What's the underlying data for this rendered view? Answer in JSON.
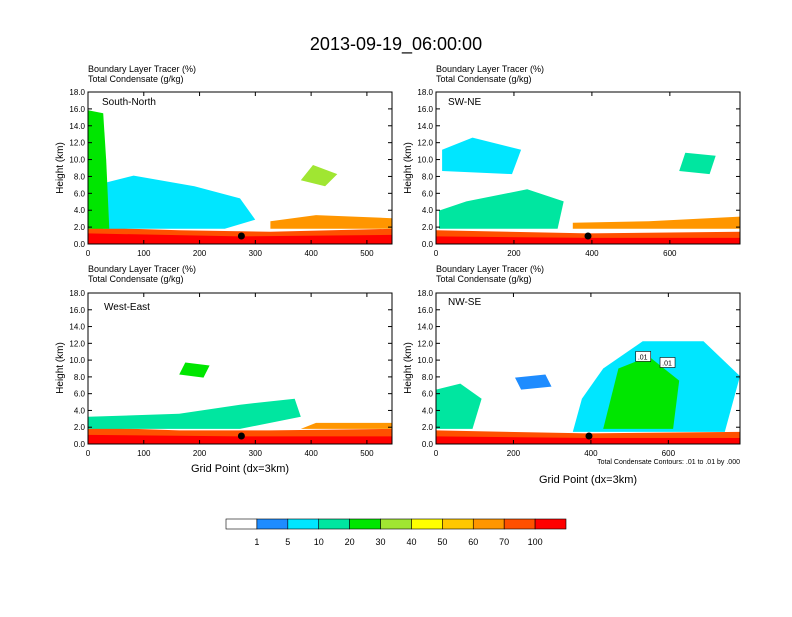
{
  "title": "2013-09-19_06:00:00",
  "x_axis_label": "Grid Point (dx=3km)",
  "contour_note": "Total Condensate Contours: .01 to .01 by .000",
  "colorbar": {
    "levels": [
      "1",
      "5",
      "10",
      "20",
      "30",
      "40",
      "50",
      "60",
      "70",
      "100"
    ],
    "colors": [
      "#ffffff",
      "#1e8cff",
      "#00e6ff",
      "#00e6a0",
      "#00e600",
      "#a0e632",
      "#ffff00",
      "#ffc800",
      "#ff9600",
      "#ff5000",
      "#ff0000"
    ]
  },
  "chart_data": [
    {
      "type": "heatmap",
      "panel_label": "South-North",
      "subtitle_1": "Boundary Layer Tracer   (%)",
      "subtitle_2": "Total Condensate   (g/kg)",
      "ylabel": "Height (km)",
      "xlabel": "",
      "xlim": [
        0,
        545
      ],
      "ylim": [
        0,
        18
      ],
      "xticks": [
        "0",
        "100",
        "200",
        "300",
        "400",
        "500"
      ],
      "yticks": [
        "0.0",
        "2.0",
        "4.0",
        "6.0",
        "8.0",
        "10.0",
        "12.0",
        "14.0",
        "16.0",
        "18.0"
      ],
      "marker_x": 275,
      "contour_labels": []
    },
    {
      "type": "heatmap",
      "panel_label": "SW-NE",
      "subtitle_1": "Boundary Layer Tracer   (%)",
      "subtitle_2": "Total Condensate   (g/kg)",
      "ylabel": "Height (km)",
      "xlabel": "",
      "xlim": [
        0,
        780
      ],
      "ylim": [
        0,
        18
      ],
      "xticks": [
        "0",
        "200",
        "400",
        "600"
      ],
      "yticks": [
        "0.0",
        "2.0",
        "4.0",
        "6.0",
        "8.0",
        "10.0",
        "12.0",
        "14.0",
        "16.0",
        "18.0"
      ],
      "marker_x": 390,
      "contour_labels": []
    },
    {
      "type": "heatmap",
      "panel_label": "West-East",
      "subtitle_1": "Boundary Layer Tracer   (%)",
      "subtitle_2": "Total Condensate   (g/kg)",
      "ylabel": "Height (km)",
      "xlabel": "Grid Point (dx=3km)",
      "xlim": [
        0,
        545
      ],
      "ylim": [
        0,
        18
      ],
      "xticks": [
        "0",
        "100",
        "200",
        "300",
        "400",
        "500"
      ],
      "yticks": [
        "0.0",
        "2.0",
        "4.0",
        "6.0",
        "8.0",
        "10.0",
        "12.0",
        "14.0",
        "16.0",
        "18.0"
      ],
      "marker_x": 275,
      "contour_labels": []
    },
    {
      "type": "heatmap",
      "panel_label": "NW-SE",
      "subtitle_1": "Boundary Layer Tracer   (%)",
      "subtitle_2": "Total Condensate   (g/kg)",
      "ylabel": "Height (km)",
      "xlabel": "Grid Point (dx=3km)",
      "xlim": [
        0,
        785
      ],
      "ylim": [
        0,
        18
      ],
      "xticks": [
        "0",
        "200",
        "400",
        "600"
      ],
      "yticks": [
        "0.0",
        "2.0",
        "4.0",
        "6.0",
        "8.0",
        "10.0",
        "12.0",
        "14.0",
        "16.0",
        "18.0"
      ],
      "marker_x": 395,
      "contour_labels": [
        ".01",
        ".01"
      ]
    }
  ]
}
